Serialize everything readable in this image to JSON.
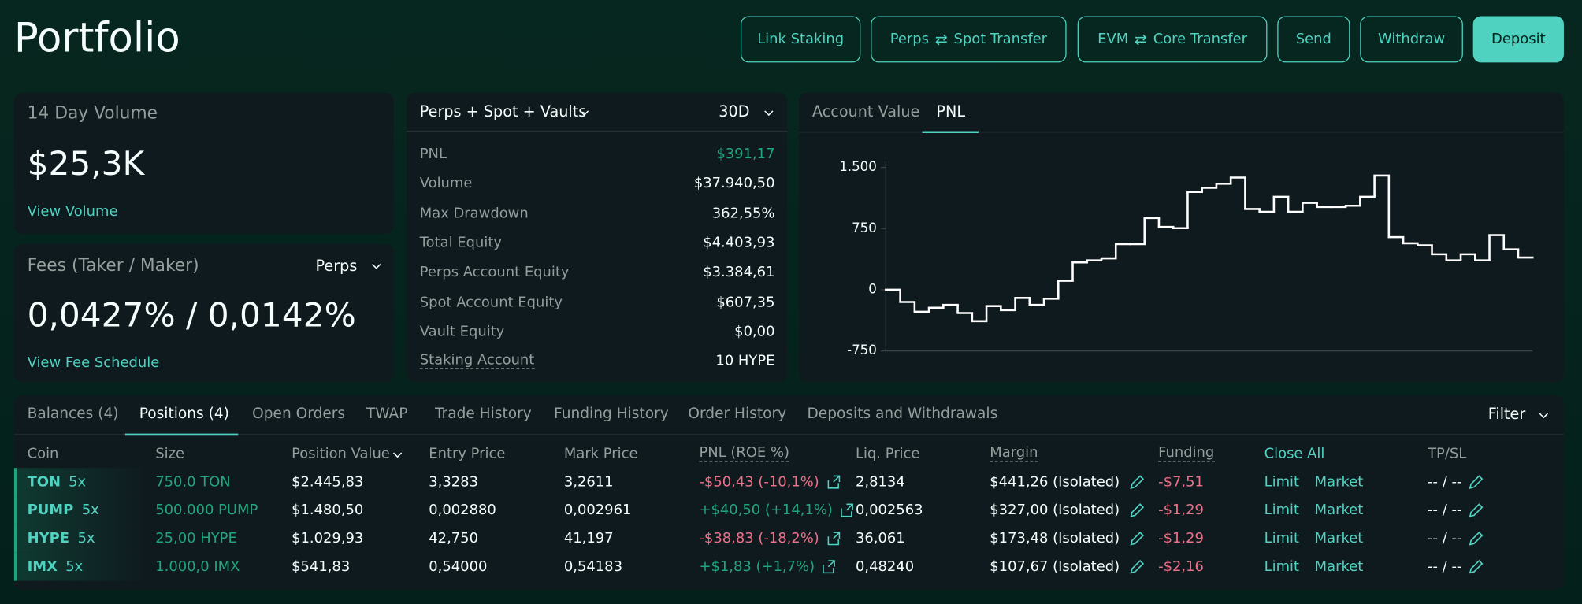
{
  "header": {
    "title": "Portfolio",
    "buttons": [
      {
        "left": "Link Staking"
      },
      {
        "left": "Perps",
        "right": "Spot Transfer"
      },
      {
        "left": "EVM",
        "right": "Core Transfer"
      },
      {
        "left": "Send"
      },
      {
        "left": "Withdraw"
      },
      {
        "left": "Deposit"
      }
    ]
  },
  "volume": {
    "label": "14 Day Volume",
    "value": "$25,3K",
    "link": "View Volume"
  },
  "fees": {
    "label": "Fees (Taker / Maker)",
    "selector": "Perps",
    "value": "0,0427% / 0,0142%",
    "link": "View Fee Schedule"
  },
  "stats": {
    "scope": "Perps + Spot + Vaults",
    "period": "30D",
    "rows": [
      [
        "PNL",
        "$391,17"
      ],
      [
        "Volume",
        "$37.940,50"
      ],
      [
        "Max Drawdown",
        "362,55%"
      ],
      [
        "Total Equity",
        "$4.403,93"
      ],
      [
        "Perps Account Equity",
        "$3.384,61"
      ],
      [
        "Spot Account Equity",
        "$607,35"
      ],
      [
        "Vault Equity",
        "$0,00"
      ],
      [
        "Staking Account",
        "10 HYPE"
      ]
    ]
  },
  "chart_panel": {
    "tabs": [
      "Account Value",
      "PNL"
    ]
  },
  "chart_data": {
    "type": "step",
    "color": "#ffffff",
    "values": [
      0,
      -150,
      -270,
      -220,
      -185,
      -285,
      -385,
      -200,
      -250,
      -100,
      -185,
      -110,
      110,
      335,
      360,
      385,
      560,
      560,
      880,
      770,
      755,
      1200,
      1250,
      1300,
      1375,
      990,
      955,
      1140,
      955,
      1065,
      1015,
      1015,
      1030,
      1140,
      1400,
      645,
      570,
      545,
      435,
      360,
      435,
      360,
      670,
      495,
      395
    ],
    "ylim": [
      -750,
      1500
    ],
    "yticks": [
      {
        "value": 1500,
        "label": "1.500"
      },
      750,
      0,
      -750
    ]
  },
  "positions": {
    "tabs": [
      "Balances (4)",
      "Positions (4)",
      "Open Orders",
      "TWAP",
      "Trade History",
      "Funding History",
      "Order History",
      "Deposits and Withdrawals"
    ],
    "filter": "Filter",
    "columns": [
      "Coin",
      "Size",
      "Position Value",
      "Entry Price",
      "Mark Price",
      "PNL (ROE %)",
      "Liq. Price",
      "Margin",
      "Funding",
      "Close All",
      "TP/SL"
    ],
    "limit": "Limit",
    "market": "Market",
    "tpsl": "-- / --",
    "rows": [
      {
        "coin": "TON",
        "lev": "5x",
        "size": "750,0 TON",
        "value": "$2.445,83",
        "entry": "3,3283",
        "mark": "3,2611",
        "pnl": "-$50,43 (-10,1%)",
        "liq": "2,8134",
        "margin": "$441,26 (Isolated)",
        "funding": "-$7,51"
      },
      {
        "coin": "PUMP",
        "lev": "5x",
        "size": "500.000 PUMP",
        "value": "$1.480,50",
        "entry": "0,002880",
        "mark": "0,002961",
        "pnl": "+$40,50 (+14,1%)",
        "liq": "0,002563",
        "margin": "$327,00 (Isolated)",
        "funding": "-$1,29"
      },
      {
        "coin": "HYPE",
        "lev": "5x",
        "size": "25,00 HYPE",
        "value": "$1.029,93",
        "entry": "42,750",
        "mark": "41,197",
        "pnl": "-$38,83 (-18,2%)",
        "liq": "36,061",
        "margin": "$173,48 (Isolated)",
        "funding": "-$1,29"
      },
      {
        "coin": "IMX",
        "lev": "5x",
        "size": "1.000,0 IMX",
        "value": "$541,83",
        "entry": "0,54000",
        "mark": "0,54183",
        "pnl": "+$1,83 (+1,7%)",
        "liq": "0,48240",
        "margin": "$107,67 (Isolated)",
        "funding": "-$2,16"
      }
    ]
  }
}
